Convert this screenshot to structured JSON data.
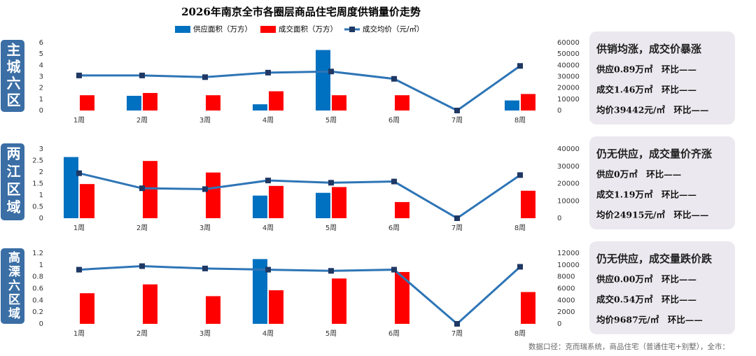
{
  "title": "2026年南京全市各圈层商品住宅周度供销量价走势",
  "footnote": "数据口径：克而瑞系统，商品住宅（普通住宅+别墅），全市：",
  "chart_data": [
    {
      "type": "combo",
      "region": "主城六区",
      "categories": [
        "1周",
        "2周",
        "3周",
        "4周",
        "5周",
        "6周",
        "7周",
        "8周"
      ],
      "series": [
        {
          "name": "供应面积（万方）",
          "type": "bar",
          "color": "#0070c0",
          "values": [
            0,
            1.3,
            0,
            0.55,
            5.35,
            0,
            0,
            0.89
          ]
        },
        {
          "name": "成交面积（万方）",
          "type": "bar",
          "color": "#ff0000",
          "values": [
            1.35,
            1.55,
            1.35,
            1.7,
            1.35,
            1.35,
            0,
            1.46
          ]
        },
        {
          "name": "成交均价（元/㎡）",
          "type": "line",
          "axis": "y2",
          "color": "#2e75b6",
          "marker_color": "#1f3864",
          "values": [
            31000,
            31000,
            29500,
            33500,
            34500,
            28000,
            0,
            39442
          ]
        }
      ],
      "ylim": [
        0,
        6
      ],
      "yticks": [
        0,
        1,
        2,
        3,
        4,
        5,
        6
      ],
      "y2lim": [
        0,
        60000
      ],
      "y2ticks": [
        0,
        10000,
        20000,
        30000,
        40000,
        50000,
        60000
      ],
      "summary": {
        "headline": "供销均涨，成交价暴涨",
        "lines": [
          "供应0.89万㎡　环比——",
          "成交1.46万㎡　环比——",
          "均价39442元/㎡　环比——"
        ]
      }
    },
    {
      "type": "combo",
      "region": "两江区域",
      "categories": [
        "1周",
        "2周",
        "3周",
        "4周",
        "5周",
        "6周",
        "7周",
        "8周"
      ],
      "series": [
        {
          "type": "bar",
          "color": "#0070c0",
          "values": [
            2.65,
            0,
            0,
            0.98,
            1.1,
            0,
            0,
            0
          ]
        },
        {
          "type": "bar",
          "color": "#ff0000",
          "values": [
            1.48,
            2.48,
            1.98,
            1.4,
            1.35,
            0.7,
            0,
            1.19
          ]
        },
        {
          "type": "line",
          "axis": "y2",
          "color": "#2e75b6",
          "marker_color": "#1f3864",
          "values": [
            26000,
            17300,
            16800,
            21800,
            20500,
            21200,
            0,
            24915
          ]
        }
      ],
      "ylim": [
        0,
        3
      ],
      "yticks": [
        0,
        0.5,
        1,
        1.5,
        2,
        2.5,
        3
      ],
      "y2lim": [
        0,
        40000
      ],
      "y2ticks": [
        0,
        10000,
        20000,
        30000,
        40000
      ],
      "summary": {
        "headline": "仍无供应，成交量价齐涨",
        "lines": [
          "供应0万㎡　环比——",
          "成交1.19万㎡　环比——",
          "均价24915元/㎡　环比——"
        ]
      }
    },
    {
      "type": "combo",
      "region": "高溧六区域",
      "categories": [
        "1周",
        "2周",
        "3周",
        "4周",
        "5周",
        "6周",
        "7周",
        "8周"
      ],
      "series": [
        {
          "type": "bar",
          "color": "#0070c0",
          "values": [
            0,
            0,
            0,
            1.1,
            0,
            0,
            0,
            0
          ]
        },
        {
          "type": "bar",
          "color": "#ff0000",
          "values": [
            0.52,
            0.67,
            0.47,
            0.57,
            0.77,
            0.88,
            0,
            0.54
          ]
        },
        {
          "type": "line",
          "axis": "y2",
          "color": "#2e75b6",
          "marker_color": "#1f3864",
          "values": [
            9200,
            9800,
            9400,
            9200,
            9000,
            9200,
            0,
            9687
          ]
        }
      ],
      "ylim": [
        0,
        1.2
      ],
      "yticks": [
        0,
        0.2,
        0.4,
        0.6,
        0.8,
        1,
        1.2
      ],
      "y2lim": [
        0,
        12000
      ],
      "y2ticks": [
        0,
        2000,
        4000,
        6000,
        8000,
        10000,
        12000
      ],
      "summary": {
        "headline": "仍无供应，成交量跌价跌",
        "lines": [
          "供应0.00万㎡　环比——",
          "成交0.54万㎡　环比——",
          "均价9687元/㎡　环比——"
        ]
      }
    }
  ]
}
